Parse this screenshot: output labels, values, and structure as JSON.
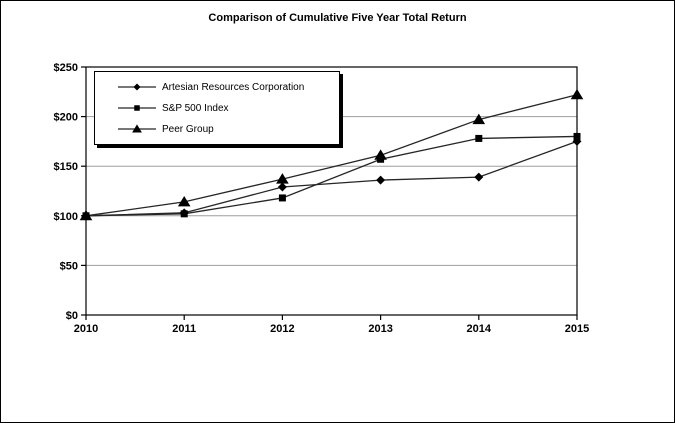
{
  "chart_data": {
    "type": "line",
    "title": "Comparison of Cumulative Five Year Total Return",
    "xlabel": "",
    "ylabel": "",
    "categories": [
      "2010",
      "2011",
      "2012",
      "2013",
      "2014",
      "2015"
    ],
    "series": [
      {
        "name": "Artesian Resources Corporation",
        "marker": "diamond",
        "values": [
          100,
          103,
          129,
          136,
          139,
          175
        ]
      },
      {
        "name": "S&P 500 Index",
        "marker": "square",
        "values": [
          100,
          102,
          118,
          157,
          178,
          180
        ]
      },
      {
        "name": "Peer Group",
        "marker": "triangle",
        "values": [
          100,
          114,
          137,
          161,
          197,
          222
        ]
      }
    ],
    "ylim": [
      0,
      250
    ],
    "y_ticks": [
      0,
      50,
      100,
      150,
      200,
      250
    ],
    "y_tick_labels": [
      "$0",
      "$50",
      "$100",
      "$150",
      "$200",
      "$250"
    ],
    "grid": "horizontal",
    "legend_position": "top-left-inside",
    "colors": {
      "line": "#262626",
      "marker": "#000000",
      "gridline": "#9e9e9e",
      "frame": "#000000",
      "text": "#000000",
      "background": "#ffffff"
    }
  }
}
